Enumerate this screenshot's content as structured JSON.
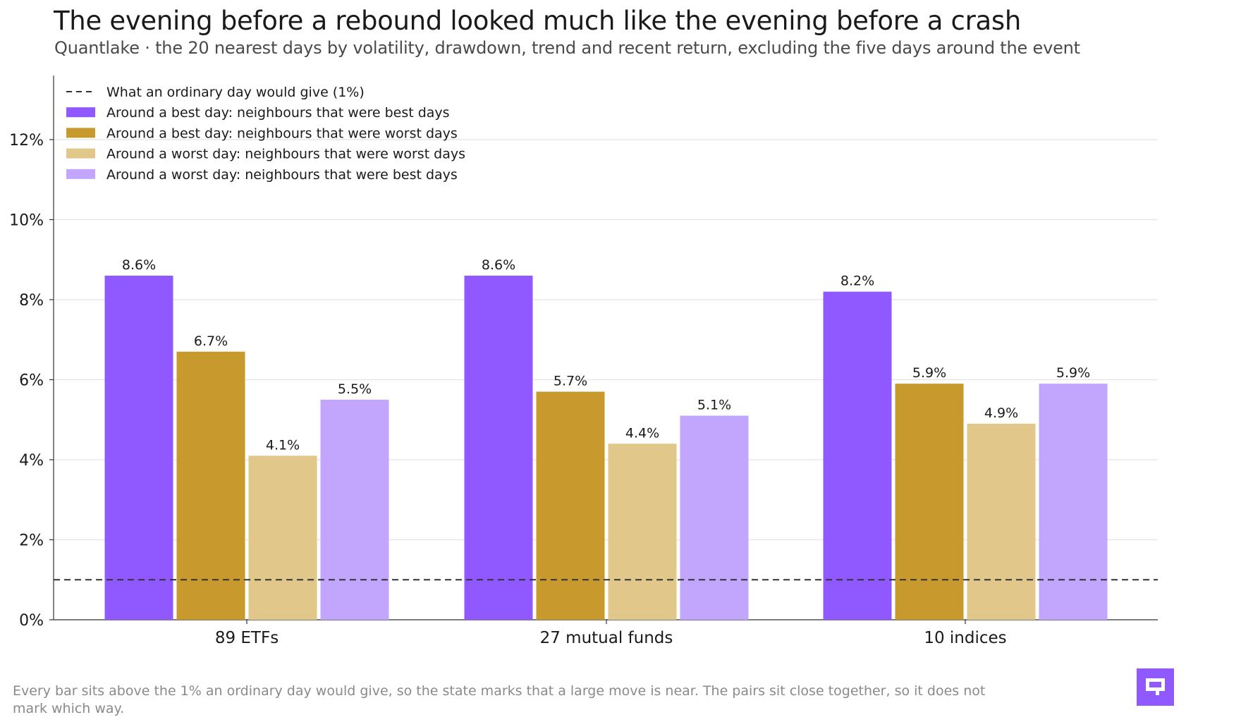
{
  "header": {
    "title": "The evening before a rebound looked much like the evening before a crash",
    "subtitle": "Quantlake · the 20 nearest days by volatility, drawdown, trend and recent return, excluding the five days around the event"
  },
  "footnote": "Every bar sits above the 1% an ordinary day would give, so the state marks that a large move is near. The pairs sit close together, so it does not mark which way.",
  "logo": {
    "icon": "quantlake-logo-icon",
    "color": "#9059ff"
  },
  "chart_data": {
    "type": "bar",
    "categories": [
      "89 ETFs",
      "27 mutual funds",
      "10 indices"
    ],
    "series": [
      {
        "name": "Around a best day: neighbours that were best days",
        "color": "#9059ff",
        "values": [
          8.6,
          8.6,
          8.2
        ],
        "labels": [
          "8.6%",
          "8.6%",
          "8.2%"
        ]
      },
      {
        "name": "Around a best day: neighbours that were worst days",
        "color": "#c89a2e",
        "values": [
          6.7,
          5.7,
          5.9
        ],
        "labels": [
          "6.7%",
          "5.7%",
          "5.9%"
        ]
      },
      {
        "name": "Around a worst day: neighbours that were worst days",
        "color": "#e1c78a",
        "values": [
          4.1,
          4.4,
          4.9
        ],
        "labels": [
          "4.1%",
          "4.4%",
          "4.9%"
        ]
      },
      {
        "name": "Around a worst day: neighbours that were best days",
        "color": "#c2a5fd",
        "values": [
          5.5,
          5.1,
          5.9
        ],
        "labels": [
          "5.5%",
          "5.1%",
          "5.9%"
        ]
      }
    ],
    "reference_line": {
      "name": "What an ordinary day would give (1%)",
      "value": 1,
      "style": "dashed",
      "color": "#333333"
    },
    "yticks": [
      0,
      2,
      4,
      6,
      8,
      10,
      12
    ],
    "ytick_labels": [
      "0%",
      "2%",
      "4%",
      "6%",
      "8%",
      "10%",
      "12%"
    ],
    "ylim": [
      0,
      13.6
    ],
    "xlabel": "",
    "ylabel": "",
    "grid": true,
    "legend": "top-left"
  }
}
